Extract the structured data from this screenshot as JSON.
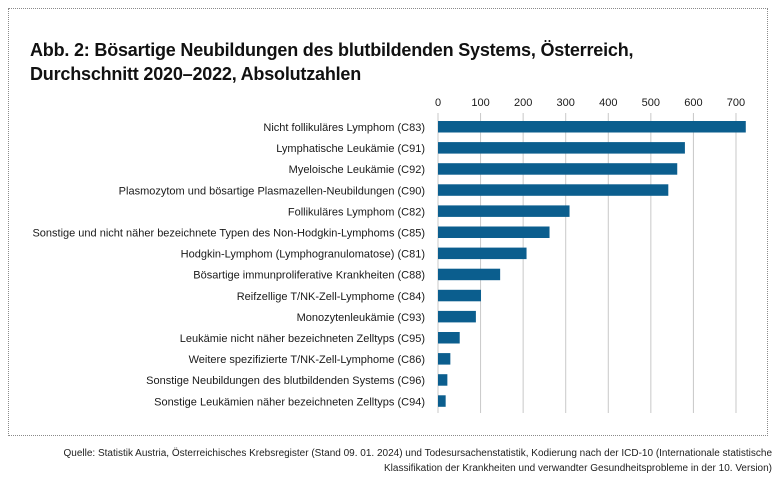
{
  "figure": {
    "title": "Abb. 2: Bösartige Neubildungen des blutbildenden Systems, Österreich,\nDurchschnitt 2020–2022, Absolutzahlen",
    "source": "Quelle: Statistik Austria, Österreichisches Krebsregister (Stand 09. 01. 2024) und Todesursachenstatistik, Kodierung nach der ICD-10 (Internationale statistische Klassifikation der Krankheiten und verwandter Gesundheitsprobleme in der 10. Version)"
  },
  "chart_data": {
    "type": "bar",
    "orientation": "horizontal",
    "title": "Abb. 2: Bösartige Neubildungen des blutbildenden Systems, Österreich, Durchschnitt 2020–2022, Absolutzahlen",
    "categories": [
      "Nicht follikuläres Lymphom (C83)",
      "Lymphatische Leukämie (C91)",
      "Myeloische Leukämie (C92)",
      "Plasmozytom und bösartige Plasmazellen-Neubildungen (C90)",
      "Follikuläres Lymphom (C82)",
      "Sonstige und nicht näher bezeichnete Typen des Non-Hodgkin-Lymphoms (C85)",
      "Hodgkin-Lymphom (Lymphogranulomatose) (C81)",
      "Bösartige immunproliferative Krankheiten (C88)",
      "Reifzellige T/NK-Zell-Lymphome (C84)",
      "Monozytenleukämie (C93)",
      "Leukämie nicht näher bezeichneten Zelltyps (C95)",
      "Weitere spezifizierte T/NK-Zell-Lymphome (C86)",
      "Sonstige Neubildungen des blutbildenden Systems (C96)",
      "Sonstige Leukämien näher bezeichneten Zelltyps (C94)"
    ],
    "values": [
      723,
      580,
      562,
      541,
      309,
      262,
      208,
      146,
      101,
      89,
      51,
      29,
      22,
      18
    ],
    "xticks": [
      0,
      100,
      200,
      300,
      400,
      500,
      600,
      700
    ],
    "xlim": [
      0,
      730
    ],
    "xlabel": "",
    "ylabel": "",
    "grid": true,
    "bar_color": "#0b5e8e",
    "grid_color": "#c8c8c8",
    "axis_position": "top"
  }
}
